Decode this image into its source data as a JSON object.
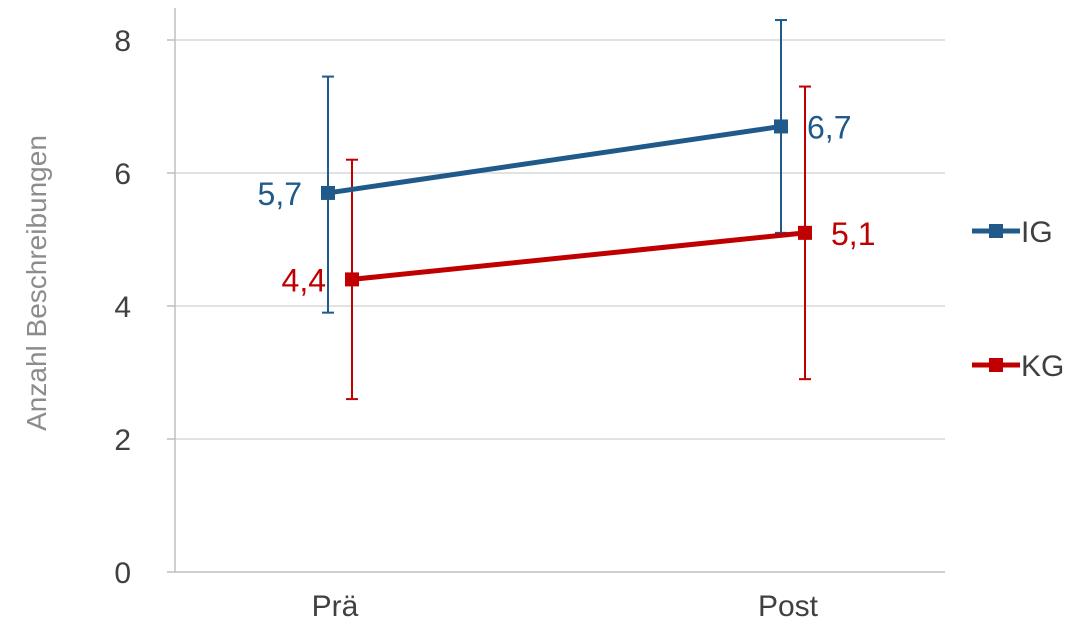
{
  "chart_data": {
    "type": "line",
    "categories": [
      "Prä",
      "Post"
    ],
    "ylabel": "Anzahl Beschreibungen",
    "xlabel": "",
    "title": "",
    "ylim": [
      0,
      8
    ],
    "yticks": [
      0,
      2,
      4,
      6,
      8
    ],
    "grid": true,
    "legend": "right",
    "series": [
      {
        "name": "IG",
        "color": "#1f5a8a",
        "values": [
          5.7,
          6.7
        ],
        "labels": [
          "5,7",
          "6,7"
        ],
        "error_low": [
          3.9,
          5.1
        ],
        "error_high": [
          7.45,
          8.3
        ]
      },
      {
        "name": "KG",
        "color": "#c00000",
        "values": [
          4.4,
          5.1
        ],
        "labels": [
          "4,4",
          "5,1"
        ],
        "error_low": [
          2.6,
          2.9
        ],
        "error_high": [
          6.2,
          7.3
        ]
      }
    ]
  }
}
